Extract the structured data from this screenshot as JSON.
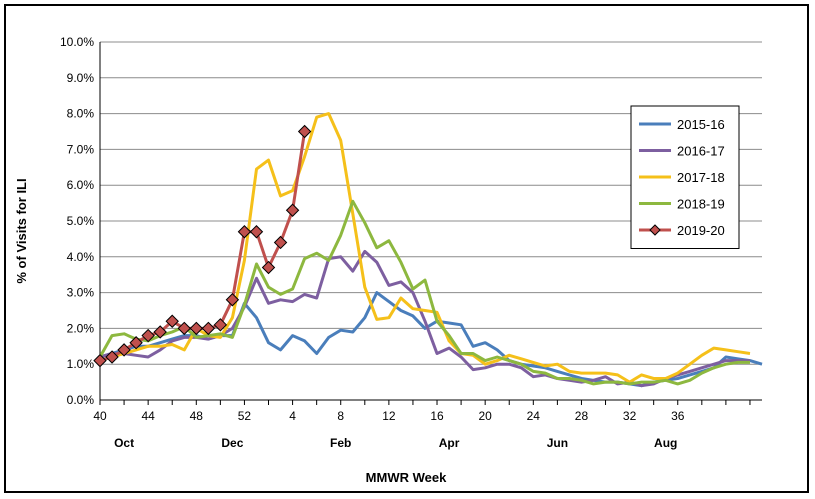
{
  "chart_data": {
    "type": "line",
    "title": "",
    "xlabel": "MMWR Week",
    "ylabel": "% of Visits for ILI",
    "ylim": [
      0,
      10
    ],
    "yticks": [
      "0.0%",
      "1.0%",
      "2.0%",
      "3.0%",
      "4.0%",
      "5.0%",
      "6.0%",
      "7.0%",
      "8.0%",
      "9.0%",
      "10.0%"
    ],
    "xtick_labels": [
      "40",
      "44",
      "48",
      "52",
      "4",
      "8",
      "12",
      "16",
      "20",
      "24",
      "28",
      "32",
      "36"
    ],
    "month_labels": [
      "Oct",
      "Dec",
      "Feb",
      "Apr",
      "Jun",
      "Aug"
    ],
    "grid": "horizontal",
    "legend_position": "right",
    "series": [
      {
        "name": "2015-16",
        "color": "#4a7ebb",
        "values": [
          1.2,
          1.3,
          1.4,
          1.5,
          1.5,
          1.6,
          1.7,
          1.8,
          1.8,
          1.7,
          1.8,
          1.8,
          2.7,
          2.3,
          1.6,
          1.4,
          1.8,
          1.65,
          1.3,
          1.75,
          1.95,
          1.9,
          2.3,
          3.0,
          2.75,
          2.5,
          2.35,
          2.0,
          2.2,
          2.15,
          2.1,
          1.5,
          1.6,
          1.4,
          1.1,
          1.0,
          0.95,
          0.9,
          0.8,
          0.7,
          0.6,
          0.55,
          0.5,
          0.5,
          0.45,
          0.4,
          0.5,
          0.55,
          0.6,
          0.7,
          0.8,
          0.9,
          1.2,
          1.15,
          1.1,
          1.0
        ]
      },
      {
        "name": "2016-17",
        "color": "#7d5fa0",
        "values": [
          1.2,
          1.3,
          1.3,
          1.25,
          1.2,
          1.4,
          1.65,
          1.75,
          1.75,
          1.7,
          1.8,
          2.0,
          2.6,
          3.4,
          2.7,
          2.8,
          2.75,
          2.95,
          2.85,
          3.95,
          4.0,
          3.6,
          4.15,
          3.85,
          3.2,
          3.3,
          3.0,
          2.2,
          1.3,
          1.45,
          1.2,
          0.85,
          0.9,
          1.0,
          1.0,
          0.9,
          0.65,
          0.7,
          0.6,
          0.55,
          0.5,
          0.55,
          0.65,
          0.45,
          0.5,
          0.4,
          0.45,
          0.6,
          0.7,
          0.8,
          0.9,
          1.0,
          1.1,
          1.1,
          1.1
        ]
      },
      {
        "name": "2017-18",
        "color": "#f5c01a",
        "values": [
          1.1,
          1.2,
          1.3,
          1.4,
          1.5,
          1.5,
          1.55,
          1.4,
          2.0,
          1.8,
          1.75,
          2.3,
          3.9,
          6.45,
          6.7,
          5.7,
          5.85,
          6.8,
          7.9,
          8.0,
          7.25,
          5.2,
          3.15,
          2.25,
          2.3,
          2.85,
          2.55,
          2.5,
          2.45,
          1.65,
          1.3,
          1.25,
          1.0,
          1.1,
          1.25,
          1.15,
          1.05,
          0.95,
          1.0,
          0.8,
          0.75,
          0.75,
          0.75,
          0.7,
          0.5,
          0.7,
          0.6,
          0.6,
          0.75,
          1.0,
          1.25,
          1.45,
          1.4,
          1.35,
          1.3
        ]
      },
      {
        "name": "2018-19",
        "color": "#8db83f",
        "values": [
          1.2,
          1.8,
          1.85,
          1.7,
          1.65,
          1.8,
          1.9,
          2.05,
          1.75,
          1.8,
          1.85,
          1.75,
          2.65,
          3.8,
          3.15,
          2.95,
          3.1,
          3.95,
          4.1,
          3.9,
          4.6,
          5.55,
          4.95,
          4.25,
          4.45,
          3.85,
          3.1,
          3.35,
          2.2,
          1.8,
          1.3,
          1.3,
          1.1,
          1.2,
          1.1,
          1.0,
          0.8,
          0.75,
          0.6,
          0.6,
          0.55,
          0.45,
          0.5,
          0.5,
          0.45,
          0.5,
          0.5,
          0.55,
          0.45,
          0.55,
          0.75,
          0.9,
          1.0,
          1.05,
          1.05
        ]
      },
      {
        "name": "2019-20",
        "color": "#c0504d",
        "marker": "diamond",
        "values": [
          1.1,
          1.2,
          1.4,
          1.6,
          1.8,
          1.9,
          2.2,
          2.0,
          2.0,
          2.0,
          2.1,
          2.8,
          4.7,
          4.7,
          3.7,
          4.4,
          5.3,
          7.5
        ]
      }
    ]
  }
}
